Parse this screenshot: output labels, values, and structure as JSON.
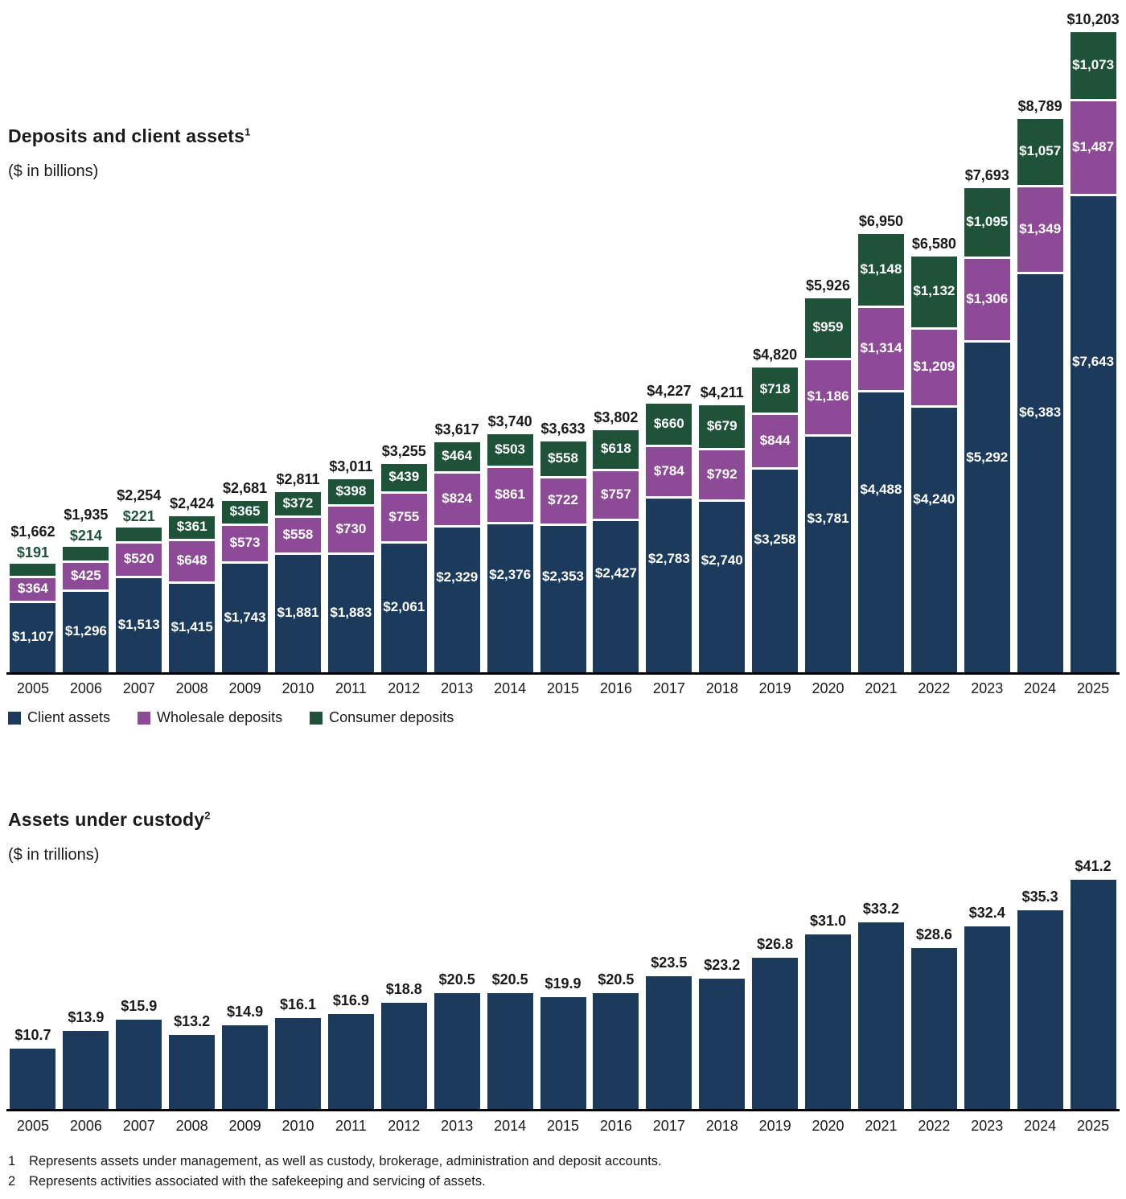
{
  "page": {
    "background": "#ffffff",
    "text_color": "#1a1a1a",
    "axis_color": "#000000"
  },
  "chart_data": [
    {
      "type": "bar",
      "subtype": "stacked",
      "title": "Deposits and client assets",
      "title_footnote_marker": "1",
      "subtitle": "($ in billions)",
      "value_prefix": "$",
      "grid": false,
      "legend_position": "bottom-left",
      "ylim": [
        0,
        10203
      ],
      "categories": [
        "2005",
        "2006",
        "2007",
        "2008",
        "2009",
        "2010",
        "2011",
        "2012",
        "2013",
        "2014",
        "2015",
        "2016",
        "2017",
        "2018",
        "2019",
        "2020",
        "2021",
        "2022",
        "2023",
        "2024",
        "2025"
      ],
      "series": [
        {
          "name": "Client assets",
          "color": "#1B3A5C",
          "values": [
            1107,
            1296,
            1513,
            1415,
            1743,
            1881,
            1883,
            2061,
            2329,
            2376,
            2353,
            2427,
            2783,
            2740,
            3258,
            3781,
            4488,
            4240,
            5292,
            6383,
            7643
          ]
        },
        {
          "name": "Wholesale deposits",
          "color": "#8C4A97",
          "values": [
            364,
            425,
            520,
            648,
            573,
            558,
            730,
            755,
            824,
            861,
            722,
            757,
            784,
            792,
            844,
            1186,
            1314,
            1209,
            1306,
            1349,
            1487
          ]
        },
        {
          "name": "Consumer deposits",
          "color": "#1E5239",
          "values": [
            191,
            214,
            221,
            361,
            365,
            372,
            398,
            439,
            464,
            503,
            558,
            618,
            660,
            679,
            718,
            959,
            1148,
            1132,
            1095,
            1057,
            1073
          ]
        }
      ],
      "totals": [
        1662,
        1935,
        2254,
        2424,
        2681,
        2811,
        3011,
        3255,
        3617,
        3740,
        3633,
        3802,
        4227,
        4211,
        4820,
        5926,
        6950,
        6580,
        7693,
        8789,
        10203
      ]
    },
    {
      "type": "bar",
      "subtype": "simple",
      "title": "Assets under custody",
      "title_footnote_marker": "2",
      "subtitle": "($ in trillions)",
      "value_prefix": "$",
      "grid": false,
      "bar_color": "#1B3A5C",
      "ylim": [
        0,
        41.2
      ],
      "categories": [
        "2005",
        "2006",
        "2007",
        "2008",
        "2009",
        "2010",
        "2011",
        "2012",
        "2013",
        "2014",
        "2015",
        "2016",
        "2017",
        "2018",
        "2019",
        "2020",
        "2021",
        "2022",
        "2023",
        "2024",
        "2025"
      ],
      "values": [
        10.7,
        13.9,
        15.9,
        13.2,
        14.9,
        16.1,
        16.9,
        18.8,
        20.5,
        20.5,
        19.9,
        20.5,
        23.5,
        23.2,
        26.8,
        31.0,
        33.2,
        28.6,
        32.4,
        35.3,
        41.2
      ]
    }
  ],
  "footnotes": [
    {
      "marker": "1",
      "text": "Represents assets under management, as well as custody, brokerage, administration and deposit accounts."
    },
    {
      "marker": "2",
      "text": "Represents activities associated with the safekeeping and servicing of assets."
    }
  ]
}
